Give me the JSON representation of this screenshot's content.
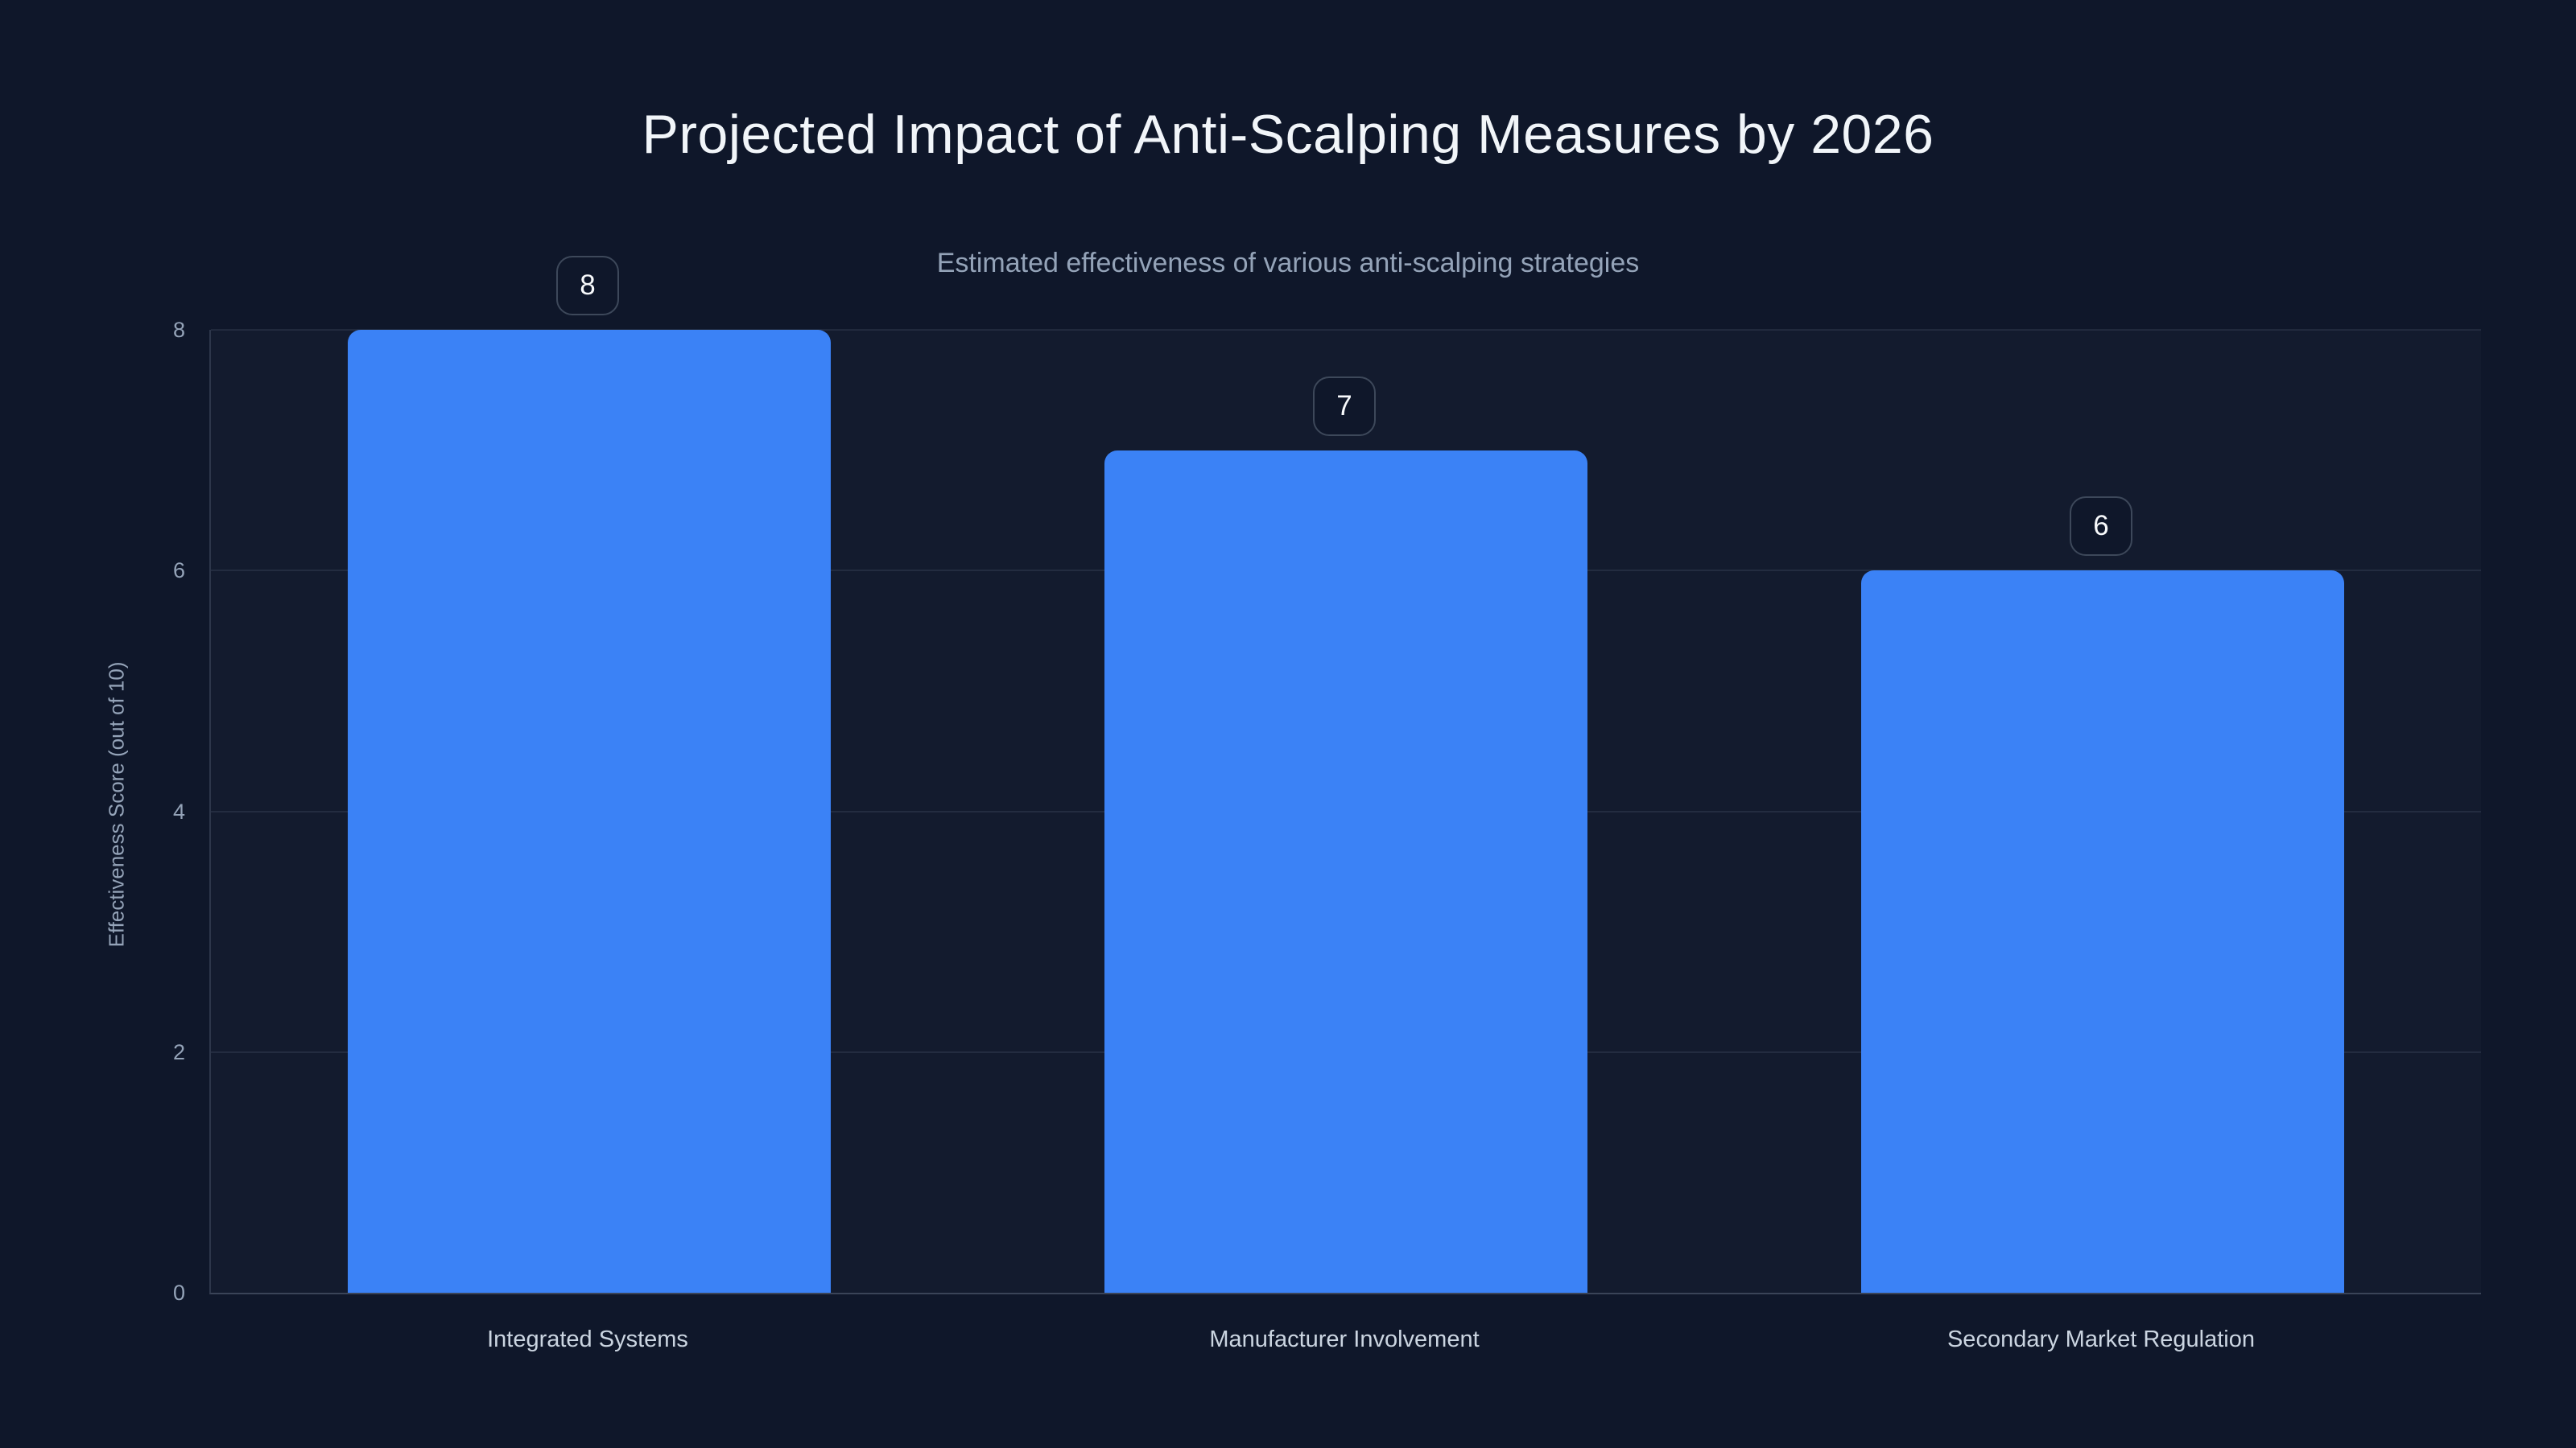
{
  "title": "Projected Impact of Anti-Scalping Measures by 2026",
  "subtitle": "Estimated effectiveness of various anti-scalping strategies",
  "chart_data": {
    "type": "bar",
    "title": "Projected Impact of Anti-Scalping Measures by 2026",
    "subtitle": "Estimated effectiveness of various anti-scalping strategies",
    "categories": [
      "Integrated Systems",
      "Manufacturer Involvement",
      "Secondary Market Regulation"
    ],
    "values": [
      8,
      7,
      6
    ],
    "bar_labels": [
      "8",
      "7",
      "6"
    ],
    "xlabel": "",
    "ylabel": "Effectiveness Score (out of 10)",
    "ylim": [
      0,
      8
    ],
    "yticks": [
      0,
      2,
      4,
      6,
      8
    ],
    "grid": true,
    "legend": false
  },
  "colors": {
    "background": "#0f172a",
    "bar": "#3b82f6",
    "title_text": "#f1f5f9",
    "subtitle_text": "#94a3b8",
    "tick_text": "#94a3b8",
    "category_text": "#cbd5e1",
    "grid_line": "rgba(148,163,184,0.13)",
    "axis_line": "rgba(148,163,184,0.2)",
    "baseline": "rgba(148,163,184,0.3)",
    "badge_border": "#3d485a",
    "badge_text": "#f8fafc"
  }
}
